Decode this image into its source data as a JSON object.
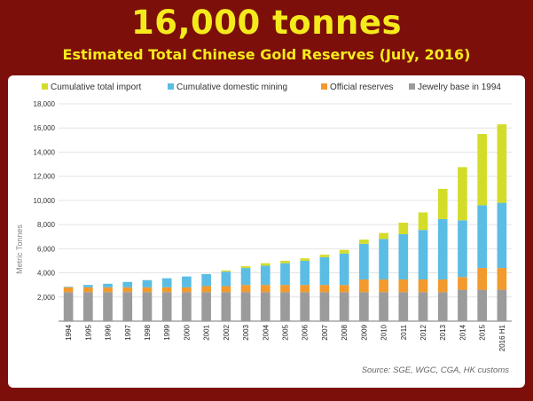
{
  "title": "16,000 tonnes",
  "subtitle": "Estimated Total Chinese Gold Reserves (July, 2016)",
  "source": "Source: SGE, WGC, CGA, HK customs",
  "colors": {
    "background": "#7d0f0b",
    "title": "#f5ea1c"
  },
  "chart_data": {
    "type": "bar",
    "stacked": true,
    "ylabel": "Metric Tonnes",
    "ylim": [
      0,
      18000
    ],
    "yticks": [
      0,
      2000,
      4000,
      6000,
      8000,
      10000,
      12000,
      14000,
      16000,
      18000
    ],
    "ytick_labels": [
      "",
      "2,000",
      "4,000",
      "6,000",
      "8,000",
      "10,000",
      "12,000",
      "14,000",
      "16,000",
      "18,000"
    ],
    "grid": true,
    "legend_position": "top",
    "categories": [
      "1994",
      "1995",
      "1996",
      "1997",
      "1998",
      "1999",
      "2000",
      "2001",
      "2002",
      "2003",
      "2004",
      "2005",
      "2006",
      "2007",
      "2008",
      "2009",
      "2010",
      "2011",
      "2012",
      "2013",
      "2014",
      "2015",
      "2016 H1"
    ],
    "series": [
      {
        "name": "Jewelry base in 1994",
        "color": "#9b9b9b",
        "values": [
          2400,
          2400,
          2400,
          2400,
          2400,
          2400,
          2400,
          2400,
          2400,
          2400,
          2400,
          2400,
          2400,
          2400,
          2400,
          2400,
          2400,
          2400,
          2400,
          2400,
          2600,
          2600,
          2600
        ]
      },
      {
        "name": "Official reserves",
        "color": "#f29a2e",
        "values": [
          400,
          400,
          400,
          400,
          400,
          400,
          400,
          500,
          500,
          600,
          600,
          600,
          600,
          600,
          600,
          1054,
          1054,
          1054,
          1054,
          1054,
          1054,
          1800,
          1800
        ]
      },
      {
        "name": "Cumulative domestic mining",
        "color": "#5bbde4",
        "values": [
          50,
          200,
          300,
          450,
          600,
          750,
          900,
          1000,
          1200,
          1400,
          1600,
          1800,
          2000,
          2300,
          2600,
          2950,
          3350,
          3750,
          4100,
          5000,
          4700,
          5200,
          5400
        ]
      },
      {
        "name": "Cumulative total import",
        "color": "#d4dc2a",
        "values": [
          0,
          0,
          0,
          0,
          0,
          0,
          0,
          0,
          100,
          150,
          200,
          200,
          200,
          200,
          300,
          350,
          500,
          950,
          1450,
          2500,
          4400,
          5900,
          6500
        ]
      }
    ],
    "legend_order": [
      "Cumulative total import",
      "Cumulative domestic mining",
      "Official reserves",
      "Jewelry base in 1994"
    ]
  }
}
